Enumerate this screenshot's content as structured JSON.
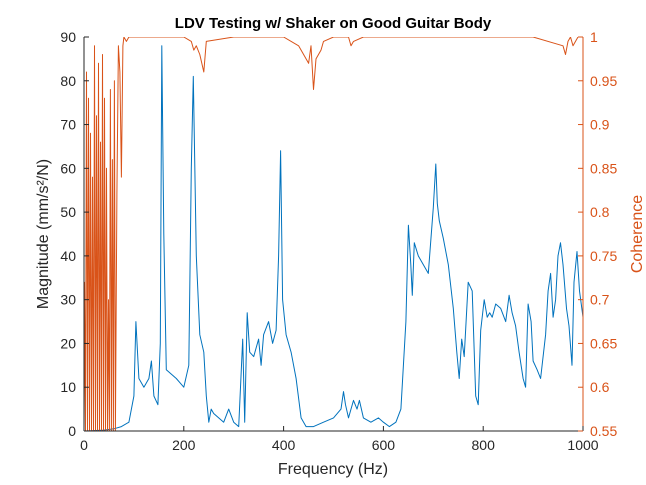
{
  "chart_data": {
    "type": "line",
    "title": "LDV Testing w/ Shaker on Good Guitar Body",
    "xlabel": "Frequency (Hz)",
    "ylabel_left": "Magnitude  (mm/s²/N)",
    "ylabel_right": "Coherence",
    "xlim": [
      0,
      1000
    ],
    "ylim_left": [
      0,
      90
    ],
    "ylim_right": [
      0.55,
      1
    ],
    "x_ticks": [
      "0",
      "200",
      "400",
      "600",
      "800",
      "1000"
    ],
    "y_ticks_left": [
      "0",
      "10",
      "20",
      "30",
      "40",
      "50",
      "60",
      "70",
      "80",
      "90"
    ],
    "y_ticks_right": [
      "0.55",
      "0.6",
      "0.65",
      "0.7",
      "0.75",
      "0.8",
      "0.85",
      "0.9",
      "0.95",
      "1"
    ],
    "grid": false,
    "colors": {
      "magnitude": "#0072BD",
      "coherence": "#D95319",
      "axis": "#262626"
    },
    "series": [
      {
        "axis": "left",
        "x": [
          0,
          40,
          60,
          75,
          90,
          100,
          104,
          110,
          120,
          130,
          135,
          140,
          148,
          153,
          156,
          160,
          165,
          175,
          185,
          200,
          210,
          215,
          219,
          225,
          232,
          240,
          245,
          250,
          255,
          260,
          270,
          280,
          290,
          300,
          310,
          318,
          322,
          327,
          332,
          340,
          350,
          355,
          360,
          370,
          378,
          385,
          390,
          394,
          398,
          405,
          415,
          425,
          435,
          445,
          460,
          480,
          500,
          515,
          520,
          524,
          530,
          540,
          547,
          552,
          560,
          575,
          590,
          600,
          612,
          625,
          635,
          645,
          650,
          655,
          658,
          662,
          670,
          680,
          690,
          700,
          705,
          708,
          712,
          720,
          730,
          740,
          747,
          752,
          757,
          762,
          770,
          778,
          785,
          790,
          795,
          802,
          808,
          813,
          818,
          825,
          835,
          845,
          852,
          858,
          865,
          872,
          880,
          885,
          890,
          896,
          900,
          908,
          915,
          920,
          925,
          930,
          935,
          940,
          945,
          950,
          955,
          960,
          967,
          972,
          978,
          982,
          988,
          993,
          1000
        ],
        "y": [
          0,
          0.2,
          0.5,
          1,
          2,
          8,
          25,
          12,
          10,
          12,
          16,
          8,
          6,
          20,
          88,
          45,
          14,
          13,
          12,
          10,
          15,
          60,
          81,
          40,
          22,
          18,
          8,
          2,
          5,
          4,
          3,
          2,
          5,
          2,
          1,
          21,
          2,
          27,
          18,
          17,
          21,
          15,
          22,
          25,
          20,
          23,
          40,
          64,
          30,
          22,
          18,
          12,
          3,
          1,
          1,
          2,
          3,
          5,
          9,
          6,
          3,
          7,
          5,
          7,
          3,
          2,
          3,
          2,
          1,
          2,
          5,
          25,
          47,
          38,
          31,
          43,
          40,
          38,
          36,
          51,
          61,
          52,
          48,
          44,
          38,
          28,
          18,
          12,
          21,
          17,
          34,
          32,
          8,
          6,
          23,
          30,
          26,
          27,
          26,
          29,
          28,
          25,
          31,
          27,
          24,
          18,
          12,
          10,
          29,
          25,
          16,
          14,
          12,
          17,
          22,
          32,
          36,
          26,
          30,
          40,
          43,
          38,
          28,
          24,
          15,
          34,
          41,
          32,
          26
        ]
      },
      {
        "axis": "right",
        "x": [
          0,
          1,
          3,
          5,
          7,
          9,
          11,
          13,
          15,
          17,
          19,
          21,
          23,
          25,
          27,
          29,
          31,
          33,
          35,
          37,
          39,
          41,
          43,
          45,
          47,
          49,
          51,
          53,
          55,
          57,
          59,
          61,
          63,
          66,
          69,
          72,
          75,
          78,
          80,
          85,
          90,
          100,
          150,
          200,
          215,
          220,
          225,
          232,
          240,
          245,
          300,
          400,
          430,
          440,
          450,
          455,
          460,
          465,
          470,
          475,
          480,
          500,
          530,
          535,
          540,
          560,
          600,
          700,
          800,
          900,
          960,
          965,
          970,
          975,
          980,
          990,
          1000
        ],
        "y": [
          0.55,
          0.72,
          0.55,
          0.96,
          0.55,
          0.93,
          0.55,
          0.89,
          0.55,
          0.84,
          0.55,
          0.99,
          0.55,
          0.91,
          0.55,
          0.97,
          0.55,
          0.88,
          0.55,
          0.98,
          0.55,
          0.93,
          0.55,
          0.85,
          0.55,
          0.7,
          0.55,
          0.94,
          0.55,
          0.86,
          0.55,
          0.95,
          0.55,
          0.82,
          0.99,
          0.96,
          0.84,
          0.99,
          1,
          0.995,
          1,
          1,
          1,
          1,
          0.995,
          0.985,
          0.99,
          0.98,
          0.96,
          0.995,
          1,
          1,
          0.99,
          0.98,
          0.97,
          0.99,
          0.94,
          0.975,
          0.98,
          0.985,
          0.995,
          1,
          1,
          0.99,
          0.995,
          1,
          1,
          1,
          1,
          1,
          0.99,
          0.98,
          0.995,
          1,
          0.99,
          1,
          1
        ]
      }
    ]
  }
}
